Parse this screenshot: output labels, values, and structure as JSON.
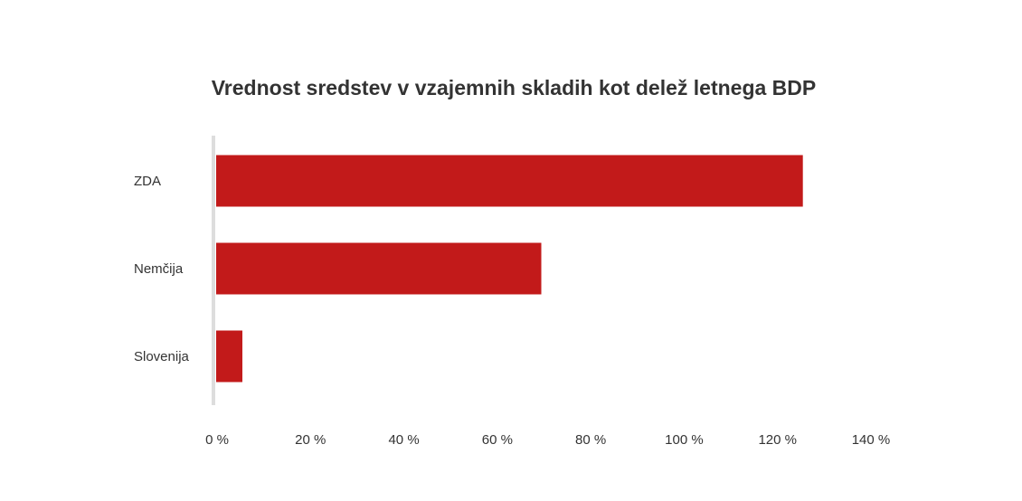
{
  "chart_data": {
    "type": "bar",
    "orientation": "horizontal",
    "title": "Vrednost sredstev v vzajemnih skladih kot delež letnega BDP",
    "categories": [
      "ZDA",
      "Nemčija",
      "Slovenija"
    ],
    "values": [
      126,
      70,
      6
    ],
    "xlim": [
      0,
      140
    ],
    "xticks": [
      0,
      20,
      40,
      60,
      80,
      100,
      120,
      140
    ],
    "xtick_labels": [
      "0 %",
      "20 %",
      "40 %",
      "60 %",
      "80 %",
      "100 %",
      "120 %",
      "140 %"
    ],
    "xlabel": "",
    "ylabel": "",
    "grid": false,
    "legend": "none",
    "colors": {
      "bar": "#c21a1a",
      "axis": "#dddddd",
      "text": "#333333"
    }
  }
}
